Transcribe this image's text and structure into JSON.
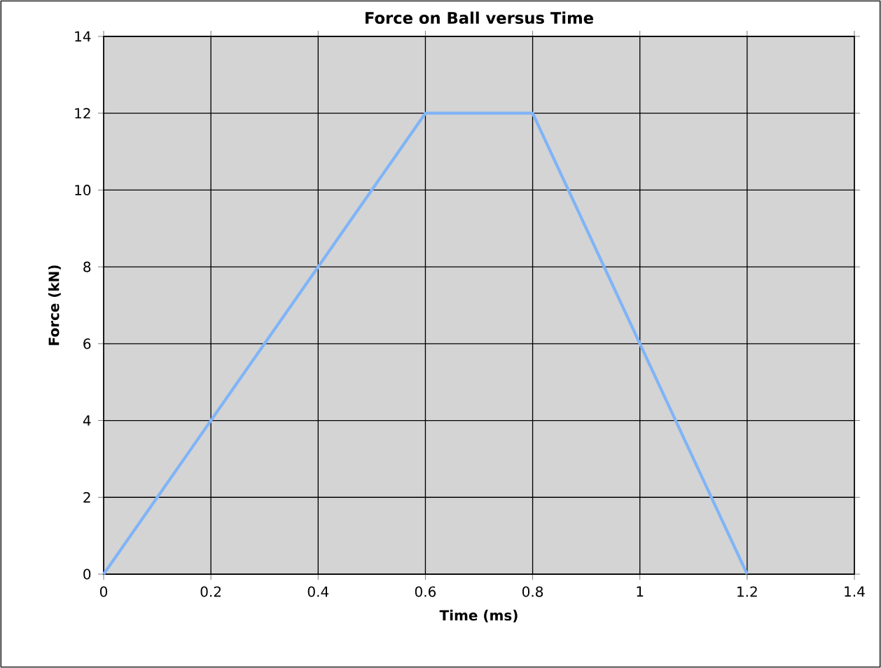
{
  "chart_data": {
    "type": "line",
    "title": "Force on Ball versus Time",
    "xlabel": "Time (ms)",
    "ylabel": "Force (kN)",
    "x": [
      0,
      0.6,
      0.8,
      1.2
    ],
    "series": [
      {
        "color": "#80b4f6",
        "values": [
          0,
          12,
          12,
          0
        ]
      }
    ],
    "xlim": [
      0,
      1.4
    ],
    "ylim": [
      0,
      14
    ],
    "xticks": [
      0,
      0.2,
      0.4,
      0.6,
      0.8,
      1,
      1.2,
      1.4
    ],
    "yticks": [
      0,
      2,
      4,
      6,
      8,
      10,
      12,
      14
    ],
    "grid": true,
    "marker": "none",
    "line_style": "solid"
  }
}
